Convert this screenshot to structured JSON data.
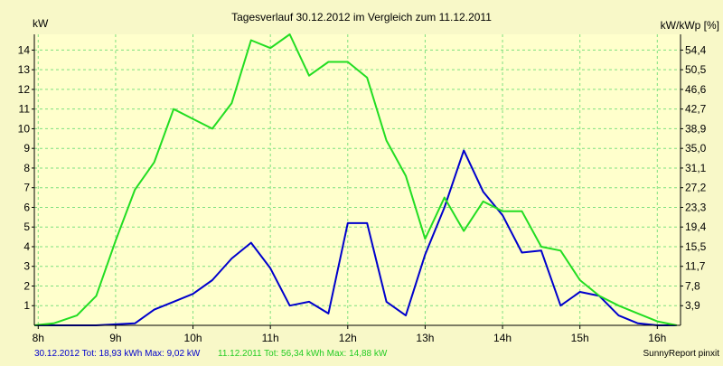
{
  "colors": {
    "background": "#f8f8c8",
    "plot_background": "#ffffcc",
    "grid": "#7fe07f",
    "axis": "#000000",
    "series_2012": "#0000cc",
    "series_2011": "#22dd22",
    "text": "#000000",
    "footer_2012": "#0000cc",
    "footer_2011": "#22cc22"
  },
  "chart_data": {
    "type": "line",
    "title": "Tagesverlauf 30.12.2012 im Vergleich zum 11.12.2011",
    "ylabel_left": "kW",
    "ylabel_right": "kW/kWp [%]",
    "xlabel": "",
    "x_ticks": [
      "8h",
      "9h",
      "10h",
      "11h",
      "12h",
      "13h",
      "14h",
      "15h",
      "16h"
    ],
    "x_tick_values": [
      8,
      9,
      10,
      11,
      12,
      13,
      14,
      15,
      16
    ],
    "xlim": [
      7.95,
      16.3
    ],
    "ylim_left": [
      0,
      14.8
    ],
    "y_ticks_left": [
      "1",
      "2",
      "3",
      "4",
      "5",
      "6",
      "7",
      "8",
      "9",
      "10",
      "11",
      "12",
      "13",
      "14"
    ],
    "y_tick_values_left": [
      1,
      2,
      3,
      4,
      5,
      6,
      7,
      8,
      9,
      10,
      11,
      12,
      13,
      14
    ],
    "y_ticks_right": [
      "3,9",
      "7,8",
      "11,7",
      "15,5",
      "19,4",
      "23,3",
      "27,2",
      "31,1",
      "35,0",
      "38,9",
      "42,7",
      "46,6",
      "50,5",
      "54,4"
    ],
    "grid": true,
    "series": [
      {
        "name": "30.12.2012",
        "color_key": "series_2012",
        "x": [
          7.95,
          8.25,
          8.5,
          8.75,
          9.0,
          9.25,
          9.5,
          9.75,
          10.0,
          10.25,
          10.5,
          10.75,
          11.0,
          11.25,
          11.5,
          11.75,
          12.0,
          12.25,
          12.5,
          12.75,
          13.0,
          13.25,
          13.5,
          13.75,
          14.0,
          14.25,
          14.5,
          14.75,
          15.0,
          15.25,
          15.5,
          15.75,
          16.0,
          16.25
        ],
        "values": [
          0,
          0,
          0,
          0,
          0.05,
          0.1,
          0.8,
          1.2,
          1.6,
          2.3,
          3.4,
          4.2,
          2.9,
          1.0,
          1.2,
          0.6,
          5.2,
          5.2,
          1.2,
          0.5,
          3.6,
          6.0,
          8.9,
          6.8,
          5.6,
          3.7,
          3.8,
          1.0,
          1.7,
          1.5,
          0.5,
          0.1,
          0,
          0
        ]
      },
      {
        "name": "11.12.2011",
        "color_key": "series_2011",
        "x": [
          7.95,
          8.2,
          8.5,
          8.75,
          9.0,
          9.25,
          9.5,
          9.75,
          10.0,
          10.25,
          10.5,
          10.75,
          11.0,
          11.25,
          11.5,
          11.75,
          12.0,
          12.25,
          12.5,
          12.75,
          13.0,
          13.25,
          13.5,
          13.75,
          14.0,
          14.25,
          14.5,
          14.75,
          15.0,
          15.25,
          15.5,
          15.75,
          16.0,
          16.25
        ],
        "values": [
          0,
          0.1,
          0.5,
          1.5,
          4.3,
          6.9,
          8.3,
          11.0,
          10.5,
          10.0,
          11.3,
          14.5,
          14.1,
          14.8,
          12.7,
          13.4,
          13.4,
          12.6,
          9.4,
          7.6,
          4.4,
          6.5,
          4.8,
          6.3,
          5.8,
          5.8,
          4.0,
          3.8,
          2.3,
          1.5,
          1.0,
          0.6,
          0.2,
          0
        ]
      }
    ]
  },
  "footer": {
    "s2012_text": "30.12.2012 Tot: 18,93 kWh Max: 9,02 kW",
    "s2011_text": "11.12.2011 Tot: 56,34 kWh Max: 14,88 kW",
    "brand": "SunnyReport pinxit"
  }
}
